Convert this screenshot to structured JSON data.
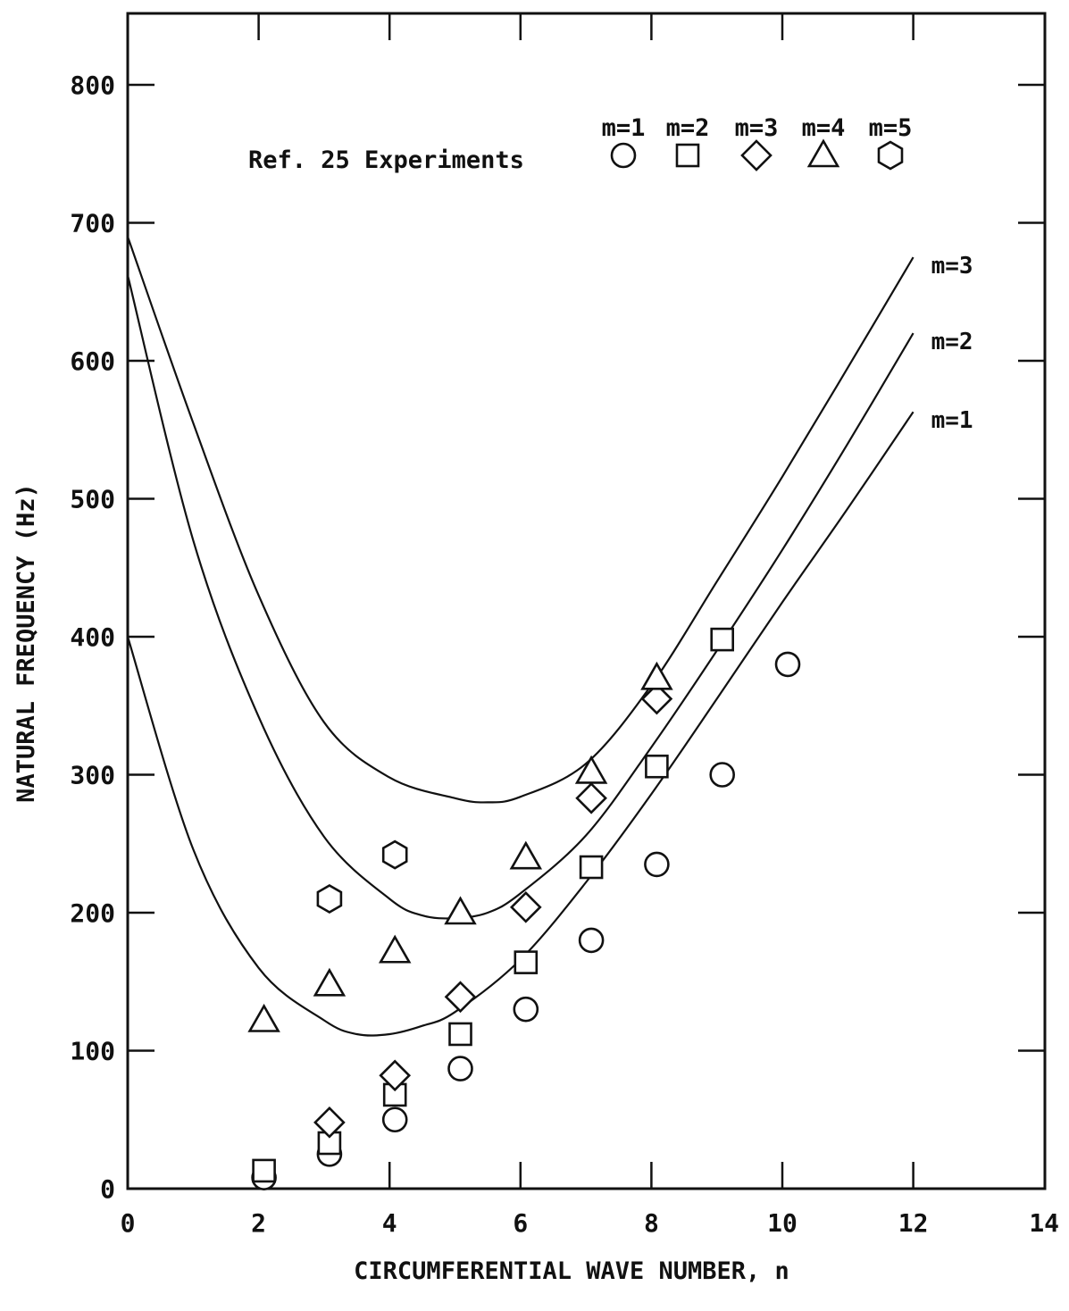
{
  "chart_data": {
    "type": "scatter",
    "title": "",
    "xlabel": "CIRCUMFERENTIAL WAVE NUMBER, n",
    "ylabel": "NATURAL FREQUENCY (Hz)",
    "xlim": [
      0,
      14
    ],
    "ylim": [
      0,
      850
    ],
    "x_ticks": [
      0,
      2,
      4,
      6,
      8,
      10,
      12,
      14
    ],
    "y_ticks": [
      0,
      100,
      200,
      300,
      400,
      500,
      600,
      700,
      800
    ],
    "x_tick_labels": [
      "0",
      "2",
      "4",
      "6",
      "8",
      "10",
      "12",
      "14"
    ],
    "y_tick_labels": [
      "0",
      "100",
      "200",
      "300",
      "400",
      "500",
      "600",
      "700",
      "800"
    ],
    "grid": false,
    "legend": {
      "title": "Ref. 25 Experiments",
      "placement": "top-right",
      "entries": [
        "m=1",
        "m=2",
        "m=3",
        "m=4",
        "m=5"
      ]
    },
    "series": [
      {
        "name": "m=1",
        "marker": "circle",
        "x": [
          2,
          3,
          4,
          5,
          6,
          7,
          8,
          9,
          10
        ],
        "y": [
          8,
          25,
          50,
          87,
          130,
          180,
          235,
          300,
          380
        ]
      },
      {
        "name": "m=2",
        "marker": "square",
        "x": [
          2,
          3,
          4,
          5,
          6,
          7,
          8,
          9
        ],
        "y": [
          13,
          33,
          68,
          112,
          164,
          233,
          306,
          398
        ]
      },
      {
        "name": "m=3",
        "marker": "diamond",
        "x": [
          3,
          4,
          5,
          6,
          7,
          8
        ],
        "y": [
          48,
          82,
          139,
          204,
          283,
          355
        ]
      },
      {
        "name": "m=4",
        "marker": "triangle",
        "x": [
          2,
          3,
          4,
          5,
          6,
          7,
          8
        ],
        "y": [
          122,
          148,
          172,
          200,
          240,
          302,
          370
        ]
      },
      {
        "name": "m=5",
        "marker": "hexagon",
        "x": [
          3,
          4
        ],
        "y": [
          210,
          242
        ]
      }
    ],
    "curves": [
      {
        "name": "m=1",
        "x": [
          0,
          1,
          2,
          3,
          3.5,
          4,
          4.5,
          5,
          6,
          7,
          8,
          9,
          10,
          11,
          12
        ],
        "y": [
          400,
          246,
          160,
          122,
          112,
          112,
          118,
          128,
          166,
          222,
          286,
          355,
          425,
          493,
          563
        ]
      },
      {
        "name": "m=2",
        "x": [
          0,
          1,
          2,
          3,
          4,
          4.5,
          5,
          5.5,
          6,
          7,
          8,
          9,
          10,
          11,
          12
        ],
        "y": [
          662,
          470,
          342,
          255,
          210,
          198,
          196,
          200,
          214,
          256,
          320,
          390,
          463,
          540,
          620
        ]
      },
      {
        "name": "m=3",
        "x": [
          0,
          1,
          2,
          3,
          4,
          5,
          5.5,
          6,
          7,
          8,
          9,
          10,
          11,
          12
        ],
        "y": [
          690,
          555,
          430,
          338,
          298,
          283,
          280,
          284,
          308,
          365,
          440,
          516,
          595,
          675
        ]
      }
    ]
  }
}
